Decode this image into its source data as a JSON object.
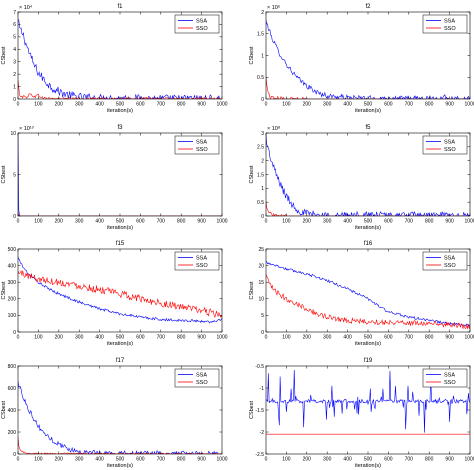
{
  "colors": {
    "ssa": "#0000ff",
    "sso": "#ff0000",
    "axis": "#000000",
    "background": "#ffffff"
  },
  "chart_data": [
    {
      "type": "line",
      "title": "f1",
      "xlabel": "iteration(s)",
      "ylabel": "CSbest",
      "xlim": [
        0,
        1000
      ],
      "ylim": [
        0,
        7
      ],
      "exponent": "× 10⁴",
      "yticks": [
        0,
        1,
        2,
        3,
        4,
        5,
        6,
        7
      ],
      "ytick_labels": [
        "0",
        "1",
        "2",
        "3",
        "4",
        "5",
        "6",
        "7"
      ],
      "xticks": [
        0,
        100,
        200,
        300,
        400,
        500,
        600,
        700,
        800,
        900,
        1000
      ],
      "xtick_labels": [
        "0",
        "100",
        "200",
        "300",
        "400",
        "500",
        "600",
        "700",
        "800",
        "900",
        "1000"
      ],
      "legend": {
        "placement": "top-right",
        "entries": [
          "SSA",
          "SSO"
        ]
      },
      "series": [
        {
          "name": "SSA",
          "color": "#0000ff",
          "noise": 0.35,
          "x": [
            0,
            10,
            25,
            40,
            60,
            80,
            100,
            130,
            160,
            200,
            250,
            300,
            400,
            500,
            600,
            700,
            800,
            900,
            1000
          ],
          "y": [
            6.3,
            5.6,
            5.2,
            4.4,
            3.5,
            2.7,
            2.1,
            1.5,
            1.0,
            0.6,
            0.3,
            0.15,
            0.05,
            0.02,
            0.01,
            0.005,
            0.003,
            0.002,
            0.001
          ]
        },
        {
          "name": "SSO",
          "color": "#ff0000",
          "noise": 0.12,
          "x": [
            0,
            5,
            10,
            20,
            40,
            60,
            80,
            100,
            120,
            150,
            200,
            300,
            1000
          ],
          "y": [
            1.5,
            0.6,
            0.3,
            0.2,
            0.15,
            0.4,
            0.2,
            0.3,
            0.1,
            0.05,
            0.02,
            0.01,
            0.0
          ]
        }
      ]
    },
    {
      "type": "line",
      "title": "f2",
      "xlabel": "iteration(s)",
      "ylabel": "CSbest",
      "xlim": [
        0,
        1000
      ],
      "ylim": [
        0,
        2
      ],
      "exponent": "× 10⁶",
      "yticks": [
        0,
        0.5,
        1,
        1.5,
        2
      ],
      "ytick_labels": [
        "0",
        "0.5",
        "1",
        "1.5",
        "2"
      ],
      "xticks": [
        0,
        100,
        200,
        300,
        400,
        500,
        600,
        700,
        800,
        900,
        1000
      ],
      "xtick_labels": [
        "0",
        "100",
        "200",
        "300",
        "400",
        "500",
        "600",
        "700",
        "800",
        "900",
        "1000"
      ],
      "legend": {
        "placement": "top-right",
        "entries": [
          "SSA",
          "SSO"
        ]
      },
      "series": [
        {
          "name": "SSA",
          "color": "#0000ff",
          "noise": 0.06,
          "x": [
            0,
            10,
            30,
            60,
            100,
            150,
            200,
            250,
            300,
            400,
            500,
            600,
            700,
            800,
            870,
            875,
            880,
            890,
            1000
          ],
          "y": [
            1.8,
            1.65,
            1.4,
            1.1,
            0.8,
            0.5,
            0.3,
            0.15,
            0.07,
            0.03,
            0.02,
            0.01,
            0.01,
            0.01,
            0.01,
            0.2,
            0.01,
            0.01,
            0.005
          ]
        },
        {
          "name": "SSO",
          "color": "#ff0000",
          "noise": 0.04,
          "x": [
            0,
            5,
            10,
            20,
            50,
            100,
            200,
            1000
          ],
          "y": [
            0.5,
            0.3,
            0.15,
            0.05,
            0.02,
            0.01,
            0.0,
            0.0
          ]
        }
      ]
    },
    {
      "type": "line",
      "title": "f3",
      "xlabel": "iteration(s)",
      "ylabel": "CSbest",
      "xlim": [
        0,
        1000
      ],
      "ylim": [
        0,
        10
      ],
      "exponent": "× 10¹³",
      "yticks": [
        0,
        5,
        10
      ],
      "ytick_labels": [
        "0",
        "5",
        "10"
      ],
      "xticks": [
        0,
        100,
        200,
        300,
        400,
        500,
        600,
        700,
        800,
        900,
        1000
      ],
      "xtick_labels": [
        "0",
        "100",
        "200",
        "300",
        "400",
        "500",
        "600",
        "700",
        "800",
        "900",
        "1000"
      ],
      "legend": {
        "placement": "top-right",
        "entries": [
          "SSA",
          "SSO"
        ]
      },
      "series": [
        {
          "name": "SSA",
          "color": "#0000ff",
          "noise": 0,
          "x": [
            0,
            2,
            4,
            6,
            8,
            12,
            1000
          ],
          "y": [
            10,
            3,
            0.5,
            0.1,
            0.0,
            0.0,
            0.0
          ]
        },
        {
          "name": "SSO",
          "color": "#ff0000",
          "noise": 0,
          "x": [
            0,
            3,
            8,
            1000
          ],
          "y": [
            0.5,
            0.1,
            0.0,
            0.0
          ]
        }
      ]
    },
    {
      "type": "line",
      "title": "f5",
      "xlabel": "iteration(s)",
      "ylabel": "CSbest",
      "xlim": [
        0,
        1000
      ],
      "ylim": [
        0,
        3
      ],
      "exponent": "× 10⁸",
      "yticks": [
        0,
        0.5,
        1,
        1.5,
        2,
        2.5,
        3
      ],
      "ytick_labels": [
        "0",
        "0.5",
        "1",
        "1.5",
        "2",
        "2.5",
        "3"
      ],
      "xticks": [
        0,
        100,
        200,
        300,
        400,
        500,
        600,
        700,
        800,
        900,
        1000
      ],
      "xtick_labels": [
        "0",
        "100",
        "200",
        "300",
        "400",
        "500",
        "600",
        "700",
        "800",
        "900",
        "1000"
      ],
      "legend": {
        "placement": "top-right",
        "entries": [
          "SSA",
          "SSO"
        ]
      },
      "series": [
        {
          "name": "SSA",
          "color": "#0000ff",
          "noise": 0.15,
          "x": [
            0,
            10,
            30,
            50,
            80,
            100,
            130,
            160,
            200,
            250,
            300,
            1000
          ],
          "y": [
            2.9,
            2.4,
            1.9,
            1.5,
            1.0,
            0.7,
            0.4,
            0.2,
            0.08,
            0.03,
            0.01,
            0.0
          ]
        },
        {
          "name": "SSO",
          "color": "#ff0000",
          "noise": 0.05,
          "x": [
            0,
            5,
            15,
            30,
            60,
            100,
            1000
          ],
          "y": [
            0.5,
            0.3,
            0.15,
            0.05,
            0.02,
            0.0,
            0.0
          ]
        }
      ]
    },
    {
      "type": "line",
      "title": "f15",
      "xlabel": "iteration(s)",
      "ylabel": "CSbest",
      "xlim": [
        0,
        1000
      ],
      "ylim": [
        0,
        500
      ],
      "exponent": "",
      "yticks": [
        0,
        100,
        200,
        300,
        400,
        500
      ],
      "ytick_labels": [
        "0",
        "100",
        "200",
        "300",
        "400",
        "500"
      ],
      "xticks": [
        0,
        100,
        200,
        300,
        400,
        500,
        600,
        700,
        800,
        900,
        1000
      ],
      "xtick_labels": [
        "0",
        "100",
        "200",
        "300",
        "400",
        "500",
        "600",
        "700",
        "800",
        "900",
        "1000"
      ],
      "legend": {
        "placement": "top-right",
        "entries": [
          "SSA",
          "SSO"
        ]
      },
      "series": [
        {
          "name": "SSA",
          "color": "#0000ff",
          "noise": 8,
          "x": [
            0,
            20,
            50,
            100,
            150,
            200,
            300,
            400,
            500,
            600,
            700,
            800,
            900,
            950,
            1000
          ],
          "y": [
            450,
            400,
            350,
            300,
            260,
            230,
            180,
            140,
            110,
            90,
            75,
            70,
            65,
            60,
            80
          ]
        },
        {
          "name": "SSO",
          "color": "#ff0000",
          "noise": 22,
          "x": [
            0,
            50,
            100,
            200,
            300,
            400,
            500,
            600,
            700,
            800,
            900,
            1000
          ],
          "y": [
            360,
            340,
            320,
            300,
            280,
            255,
            230,
            200,
            175,
            150,
            130,
            100
          ]
        }
      ]
    },
    {
      "type": "line",
      "title": "f16",
      "xlabel": "iteration(s)",
      "ylabel": "CSbest",
      "xlim": [
        0,
        1000
      ],
      "ylim": [
        0,
        25
      ],
      "exponent": "",
      "yticks": [
        0,
        5,
        10,
        15,
        20,
        25
      ],
      "ytick_labels": [
        "0",
        "5",
        "10",
        "15",
        "20",
        "25"
      ],
      "xticks": [
        0,
        100,
        200,
        300,
        400,
        500,
        600,
        700,
        800,
        900,
        1000
      ],
      "xtick_labels": [
        "0",
        "100",
        "200",
        "300",
        "400",
        "500",
        "600",
        "700",
        "800",
        "900",
        "1000"
      ],
      "legend": {
        "placement": "top-right",
        "entries": [
          "SSA",
          "SSO"
        ]
      },
      "series": [
        {
          "name": "SSA",
          "color": "#0000ff",
          "noise": 0.4,
          "x": [
            0,
            50,
            100,
            200,
            300,
            400,
            500,
            550,
            600,
            700,
            800,
            900,
            1000
          ],
          "y": [
            21,
            20,
            19,
            17.5,
            15.5,
            13,
            10,
            8,
            6,
            4.5,
            3.5,
            2.5,
            2
          ]
        },
        {
          "name": "SSO",
          "color": "#ff0000",
          "noise": 0.8,
          "x": [
            0,
            20,
            50,
            100,
            150,
            200,
            250,
            300,
            400,
            500,
            600,
            700,
            800,
            900,
            1000
          ],
          "y": [
            17,
            14,
            12,
            10,
            8.5,
            7,
            5.5,
            4.5,
            3.5,
            3,
            3,
            2.8,
            2.5,
            2.2,
            1.5
          ]
        }
      ]
    },
    {
      "type": "line",
      "title": "f17",
      "xlabel": "iteration(s)",
      "ylabel": "CSbest",
      "xlim": [
        0,
        1000
      ],
      "ylim": [
        0,
        800
      ],
      "exponent": "",
      "yticks": [
        0,
        200,
        400,
        600,
        800
      ],
      "ytick_labels": [
        "0",
        "200",
        "400",
        "600",
        "800"
      ],
      "xticks": [
        0,
        100,
        200,
        300,
        400,
        500,
        600,
        700,
        800,
        900,
        1000
      ],
      "xtick_labels": [
        "0",
        "100",
        "200",
        "300",
        "400",
        "500",
        "600",
        "700",
        "800",
        "900",
        "1000"
      ],
      "legend": {
        "placement": "top-right",
        "entries": [
          "SSA",
          "SSO"
        ]
      },
      "series": [
        {
          "name": "SSA",
          "color": "#0000ff",
          "noise": 25,
          "x": [
            0,
            10,
            30,
            60,
            100,
            150,
            200,
            250,
            300,
            400,
            1000
          ],
          "y": [
            650,
            600,
            500,
            380,
            250,
            150,
            90,
            45,
            20,
            5,
            0
          ]
        },
        {
          "name": "SSO",
          "color": "#ff0000",
          "noise": 6,
          "x": [
            0,
            5,
            15,
            30,
            60,
            1000
          ],
          "y": [
            150,
            60,
            30,
            15,
            5,
            0
          ]
        }
      ]
    },
    {
      "type": "line",
      "title": "f19",
      "xlabel": "iteration(s)",
      "ylabel": "CSbest",
      "xlim": [
        0,
        1000
      ],
      "ylim": [
        -2.5,
        -0.5
      ],
      "exponent": "",
      "yticks": [
        -2.5,
        -2,
        -1.5,
        -1,
        -0.5
      ],
      "ytick_labels": [
        "-2.5",
        "-2",
        "-1.5",
        "-1",
        "-0.5"
      ],
      "xticks": [
        0,
        100,
        200,
        300,
        400,
        500,
        600,
        700,
        800,
        900,
        1000
      ],
      "xtick_labels": [
        "0",
        "100",
        "200",
        "300",
        "400",
        "500",
        "600",
        "700",
        "800",
        "900",
        "1000"
      ],
      "legend": {
        "placement": "top-right",
        "entries": [
          "SSA",
          "SSO"
        ]
      },
      "series": [
        {
          "name": "SSA",
          "color": "#0000ff",
          "noise": 0.04,
          "spikes": 0.35,
          "x": [
            0,
            1000
          ],
          "y": [
            -1.3,
            -1.3
          ]
        },
        {
          "name": "SSO",
          "color": "#ff0000",
          "noise": 0,
          "x": [
            0,
            1000
          ],
          "y": [
            -2.05,
            -2.05
          ]
        }
      ]
    }
  ]
}
